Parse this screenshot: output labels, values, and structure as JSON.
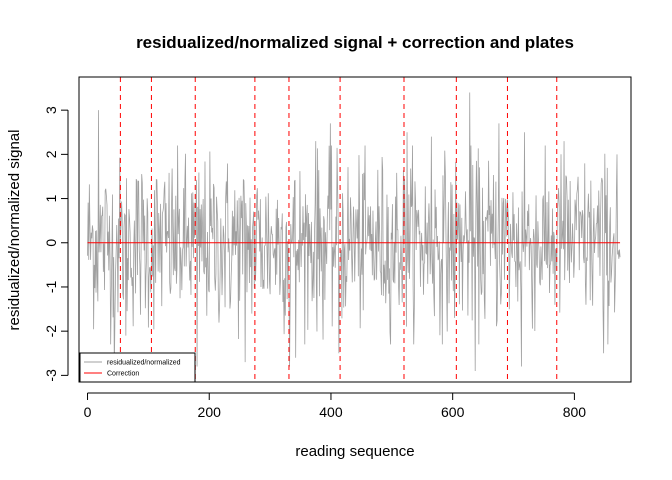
{
  "chart_data": {
    "type": "line",
    "title": "residualized/normalized signal + correction and plates",
    "xlabel": "reading sequence",
    "ylabel": "residualized/normalized signal",
    "xlim": [
      -14,
      893
    ],
    "ylim": [
      -3.15,
      3.75
    ],
    "x_ticks": [
      0,
      200,
      400,
      600,
      800
    ],
    "y_ticks": [
      -3,
      -2,
      -1,
      0,
      1,
      2,
      3
    ],
    "n_points": 876,
    "series": [
      {
        "name": "residualized/normalized",
        "color": "#a0a0a0",
        "extremes": [
          {
            "x": 18,
            "y": 3.0
          },
          {
            "x": 44,
            "y": -2.9
          },
          {
            "x": 63,
            "y": -2.1
          },
          {
            "x": 180,
            "y": -2.8
          },
          {
            "x": 259,
            "y": -2.7
          },
          {
            "x": 332,
            "y": -2.8
          },
          {
            "x": 342,
            "y": -2.6
          },
          {
            "x": 375,
            "y": 2.3
          },
          {
            "x": 399,
            "y": 2.7
          },
          {
            "x": 413,
            "y": -2.5
          },
          {
            "x": 525,
            "y": 2.5
          },
          {
            "x": 565,
            "y": 2.4
          },
          {
            "x": 628,
            "y": 3.4
          },
          {
            "x": 637,
            "y": -2.9
          },
          {
            "x": 676,
            "y": 2.7
          },
          {
            "x": 713,
            "y": -2.8
          },
          {
            "x": 718,
            "y": 2.5
          },
          {
            "x": 783,
            "y": 2.3
          },
          {
            "x": 848,
            "y": -2.5
          },
          {
            "x": 870,
            "y": 2.0
          }
        ]
      },
      {
        "name": "Correction",
        "color": "#ff0000",
        "x": [
          0,
          875
        ],
        "y": [
          0,
          0
        ]
      }
    ],
    "plate_boundaries": {
      "color": "#ff0000",
      "style": "dashed",
      "x": [
        54,
        105,
        177,
        275,
        331,
        415,
        520,
        606,
        690,
        771
      ]
    },
    "legend": {
      "position": "bottom-left",
      "entries": [
        "residualized/normalized",
        "Correction"
      ]
    },
    "grid": false
  }
}
